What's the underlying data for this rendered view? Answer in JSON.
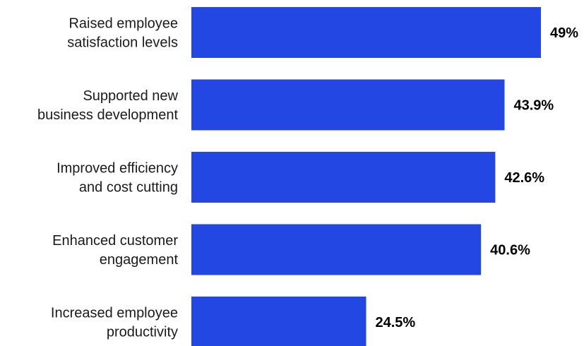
{
  "chart_data": {
    "type": "bar",
    "orientation": "horizontal",
    "categories": [
      [
        "Raised employee",
        "satisfaction levels"
      ],
      [
        "Supported new",
        "business development"
      ],
      [
        "Improved efficiency",
        "and cost cutting"
      ],
      [
        "Enhanced customer",
        "engagement"
      ],
      [
        "Increased employee",
        "productivity"
      ]
    ],
    "values": [
      49,
      43.9,
      42.6,
      40.6,
      24.5
    ],
    "value_labels": [
      "49%",
      "43.9%",
      "42.6%",
      "40.6%",
      "24.5%"
    ],
    "xlim": [
      0,
      49
    ],
    "bar_color": "#2347E3",
    "grid": false,
    "legend": "none"
  }
}
